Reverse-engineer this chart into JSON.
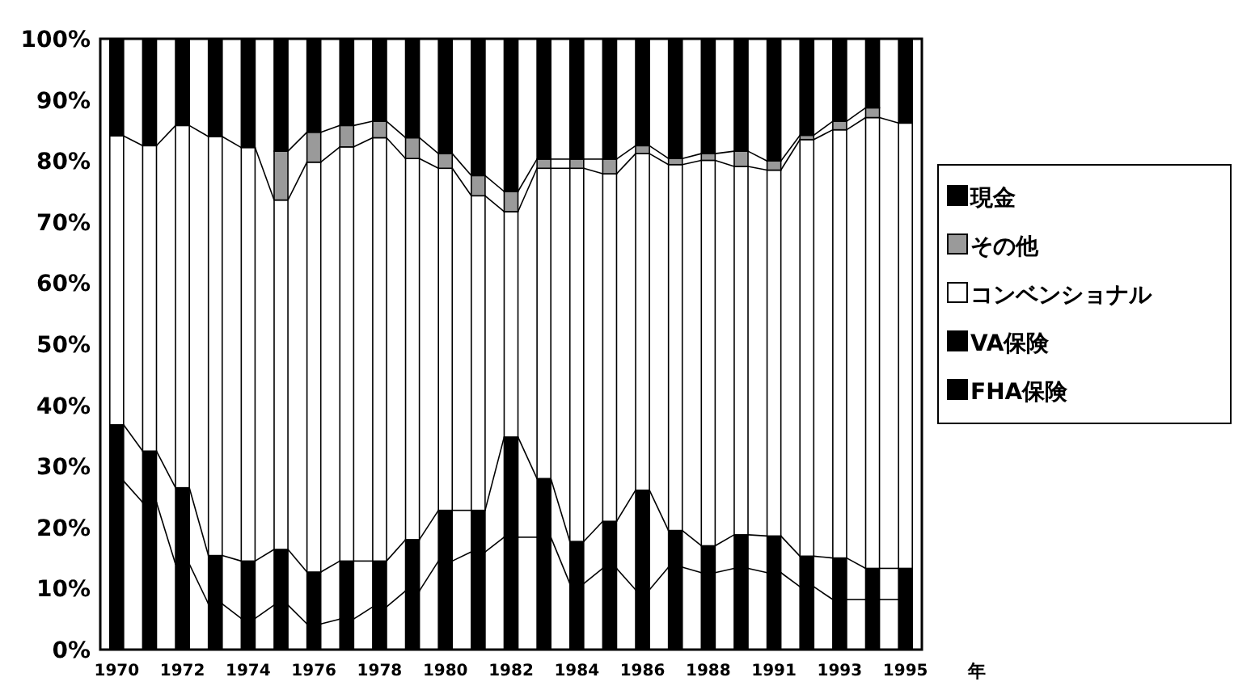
{
  "chart_data": {
    "type": "bar",
    "stacked": true,
    "categories": [
      "1970",
      null,
      "1972",
      null,
      "1974",
      null,
      "1976",
      null,
      "1978",
      null,
      "1980",
      null,
      "1982",
      null,
      "1984",
      null,
      "1986",
      null,
      "1988",
      null,
      "1991",
      null,
      "1993",
      null,
      "1995"
    ],
    "series": [
      {
        "name": "FHA保険",
        "color": "#000000",
        "values": [
          27.6,
          24.1,
          14.0,
          7.5,
          5.1,
          7.3,
          4.2,
          5.0,
          7.0,
          9.6,
          14.5,
          16.0,
          18.4,
          18.4,
          10.8,
          13.3,
          9.8,
          13.5,
          12.6,
          13.3,
          12.6,
          10.3,
          8.2,
          8.2,
          8.2
        ]
      },
      {
        "name": "VA保険",
        "color": "#000000",
        "values": [
          9.2,
          8.4,
          12.5,
          7.9,
          9.4,
          9.1,
          8.5,
          9.5,
          7.5,
          8.4,
          8.3,
          6.8,
          16.4,
          9.6,
          6.9,
          7.7,
          16.3,
          6.0,
          4.4,
          5.5,
          6.0,
          5.0,
          6.8,
          5.1,
          5.1
        ]
      },
      {
        "name": "コンベンショナル",
        "color": "#ffffff",
        "values": [
          47.3,
          50.0,
          59.3,
          68.6,
          67.7,
          57.2,
          67.1,
          67.8,
          69.3,
          62.4,
          56.0,
          51.5,
          36.9,
          50.8,
          61.1,
          56.9,
          55.1,
          59.9,
          63.1,
          60.3,
          59.9,
          68.2,
          70.1,
          73.8,
          72.9
        ]
      },
      {
        "name": "その他",
        "color": "#9a9a9a",
        "values": [
          0,
          0,
          0,
          0,
          0,
          8.0,
          4.9,
          3.5,
          2.7,
          3.4,
          2.4,
          3.3,
          3.3,
          1.5,
          1.5,
          2.4,
          1.3,
          1.0,
          1.1,
          2.5,
          1.5,
          0.7,
          1.4,
          1.6,
          0
        ]
      },
      {
        "name": "現金",
        "color": "#000000",
        "values": [
          15.9,
          17.5,
          14.2,
          16.0,
          17.8,
          18.4,
          15.3,
          14.2,
          13.5,
          16.2,
          18.8,
          22.4,
          25.0,
          19.7,
          19.7,
          19.7,
          17.5,
          19.6,
          18.8,
          18.4,
          20.0,
          15.8,
          13.5,
          11.3,
          13.8
        ]
      }
    ],
    "xlabel": "年",
    "ylim": [
      0,
      100
    ],
    "yticks": [
      {
        "value": 0,
        "label": "0%"
      },
      {
        "value": 10,
        "label": "10%"
      },
      {
        "value": 20,
        "label": "20%"
      },
      {
        "value": 30,
        "label": "30%"
      },
      {
        "value": 40,
        "label": "40%"
      },
      {
        "value": 50,
        "label": "50%"
      },
      {
        "value": 60,
        "label": "60%"
      },
      {
        "value": 70,
        "label": "70%"
      },
      {
        "value": 80,
        "label": "80%"
      },
      {
        "value": 90,
        "label": "90%"
      },
      {
        "value": 100,
        "label": "100%"
      }
    ],
    "legend": "right",
    "grid": false
  }
}
